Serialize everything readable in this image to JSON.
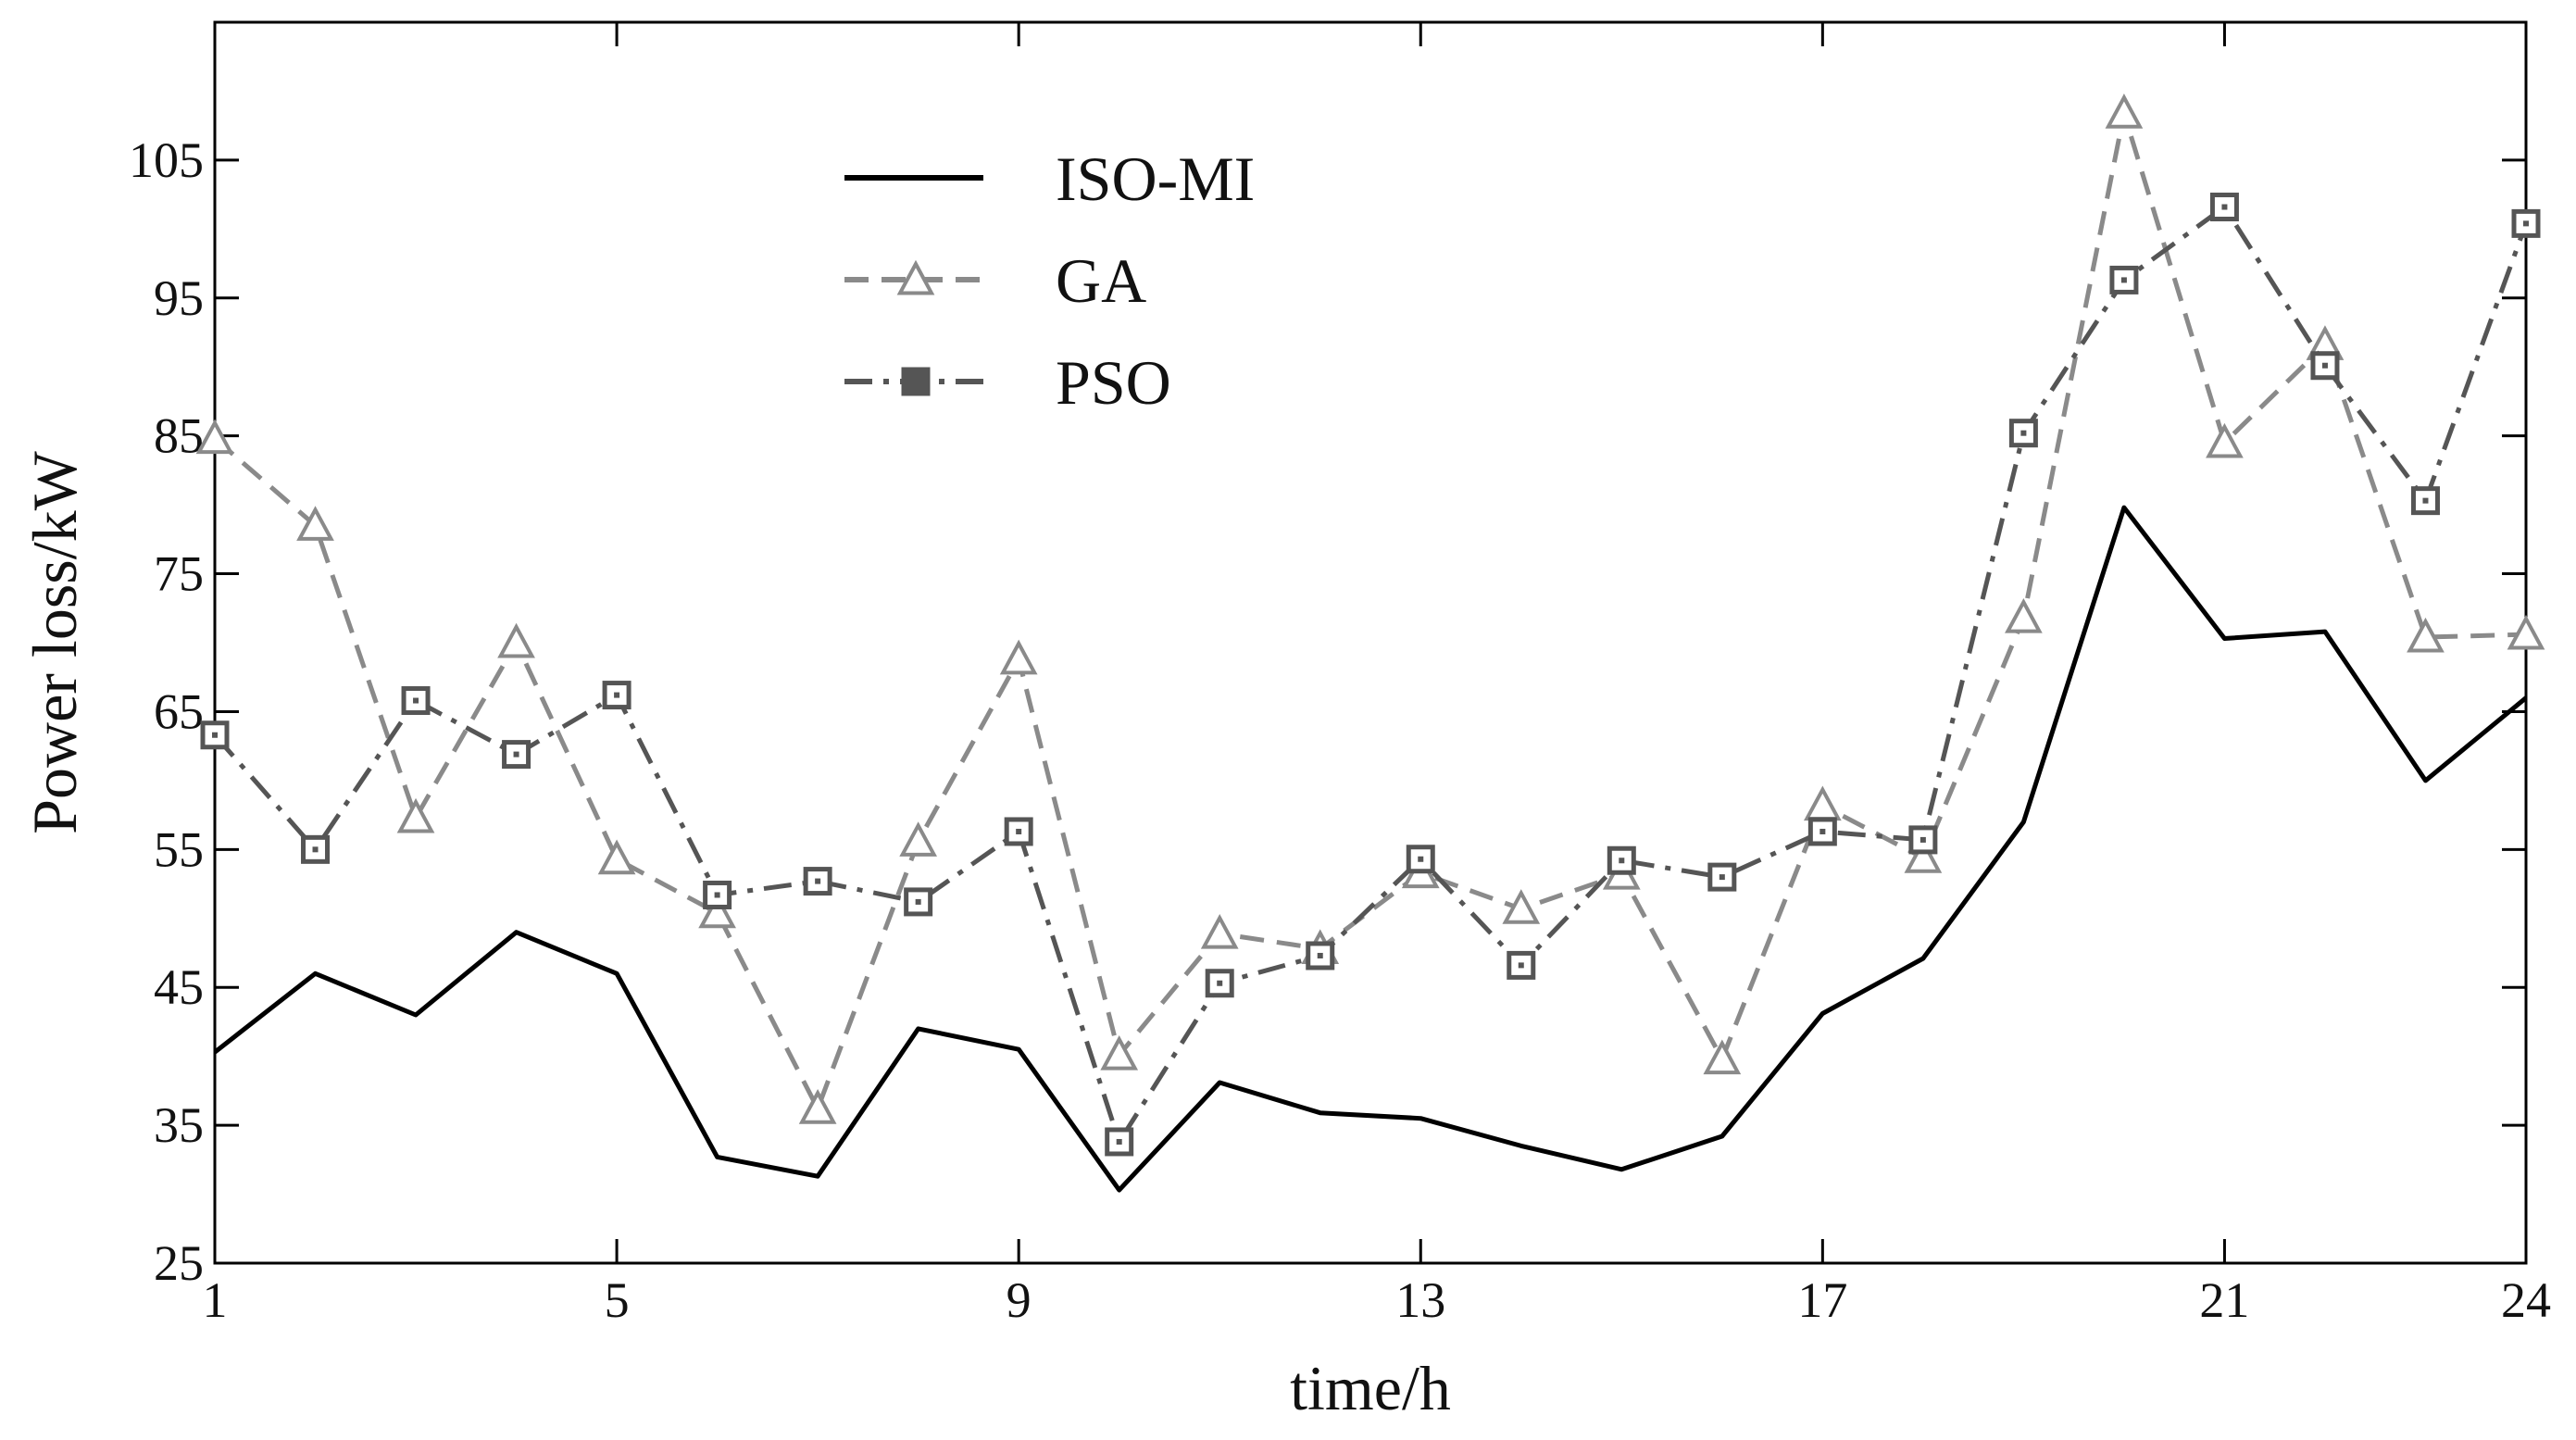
{
  "chart_data": {
    "type": "line",
    "title": "",
    "xlabel": "time/h",
    "ylabel": "Power loss/kW",
    "xlim": [
      1,
      24
    ],
    "ylim": [
      25,
      115
    ],
    "xticks": [
      1,
      5,
      9,
      13,
      17,
      21,
      24
    ],
    "xtick_labels": [
      "1",
      "5",
      "9",
      "13",
      "17",
      "21",
      "24"
    ],
    "yticks": [
      25,
      35,
      45,
      55,
      65,
      75,
      85,
      95,
      105
    ],
    "ytick_labels": [
      "25",
      "35",
      "45",
      "55",
      "65",
      "75",
      "85",
      "95",
      "105"
    ],
    "grid": false,
    "legend_position": "top-left",
    "x": [
      1,
      2,
      3,
      4,
      5,
      6,
      7,
      8,
      9,
      10,
      11,
      12,
      13,
      14,
      15,
      16,
      17,
      18,
      19,
      20,
      21,
      22,
      23,
      24
    ],
    "series": [
      {
        "name": "ISO-MI",
        "color": "#000000",
        "line_style": "solid",
        "marker": "none",
        "values": [
          40.3,
          46.0,
          43.0,
          49.0,
          46.0,
          32.7,
          31.3,
          42.0,
          40.5,
          30.3,
          38.1,
          35.9,
          35.5,
          33.5,
          31.8,
          34.2,
          43.1,
          47.1,
          57.0,
          79.8,
          70.3,
          70.8,
          60.0,
          66.0
        ]
      },
      {
        "name": "GA",
        "color": "#8a8a8a",
        "line_style": "dashed",
        "marker": "triangle",
        "values": [
          84.8,
          78.5,
          57.3,
          70.0,
          54.3,
          50.4,
          36.2,
          55.6,
          68.8,
          40.1,
          48.9,
          47.8,
          53.3,
          50.7,
          53.2,
          39.8,
          58.2,
          54.4,
          71.8,
          108.4,
          84.5,
          91.6,
          70.4,
          70.6
        ]
      },
      {
        "name": "PSO",
        "color": "#555555",
        "line_style": "dash-dot",
        "marker": "square",
        "values": [
          63.3,
          55.0,
          65.8,
          61.9,
          66.2,
          51.7,
          52.7,
          51.2,
          56.3,
          33.8,
          45.3,
          47.3,
          54.3,
          46.6,
          54.2,
          53.0,
          56.3,
          55.7,
          85.2,
          96.3,
          101.6,
          90.1,
          80.3,
          100.4
        ]
      }
    ]
  }
}
